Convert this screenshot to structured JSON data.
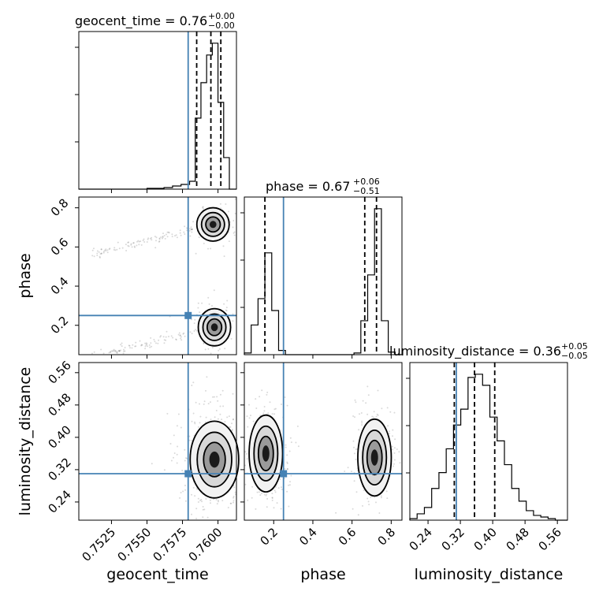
{
  "chart_data": {
    "type": "corner",
    "truths": {
      "geocent_time": 0.7579,
      "phase": 0.25,
      "luminosity_distance": 0.31
    },
    "titles": [
      {
        "param": "geocent_time",
        "main": "geocent_time = 0.76",
        "plus": "+0.00",
        "minus": "−0.00"
      },
      {
        "param": "phase",
        "main": "phase = 0.67",
        "plus": "+0.06",
        "minus": "−0.51"
      },
      {
        "param": "luminosity_distance",
        "main": "luminosity_distance = 0.36",
        "plus": "+0.05",
        "minus": "−0.05"
      }
    ],
    "axis_labels": {
      "x": [
        "geocent_time",
        "phase",
        "luminosity_distance"
      ],
      "y": [
        "phase",
        "luminosity_distance"
      ]
    },
    "ticks": {
      "geocent_time": {
        "values": [
          0.7525,
          0.755,
          0.7575,
          0.76
        ],
        "labels": [
          "0.7525",
          "0.7550",
          "0.7575",
          "0.7600"
        ]
      },
      "phase": {
        "values": [
          0.2,
          0.4,
          0.6,
          0.8
        ],
        "labels": [
          "0.2",
          "0.4",
          "0.6",
          "0.8"
        ]
      },
      "luminosity_distance": {
        "values": [
          0.24,
          0.32,
          0.4,
          0.48,
          0.56
        ],
        "labels": [
          "0.24",
          "0.32",
          "0.40",
          "0.48",
          "0.56"
        ]
      }
    },
    "ranges": {
      "geocent_time": [
        0.7502,
        0.7613
      ],
      "phase": [
        0.05,
        0.855
      ],
      "luminosity_distance": [
        0.195,
        0.585
      ]
    },
    "grid": true,
    "histograms": {
      "geocent_time": {
        "edges": [
          0.7502,
          0.7508,
          0.7514,
          0.752,
          0.7526,
          0.7532,
          0.7538,
          0.7544,
          0.755,
          0.7556,
          0.7562,
          0.7568,
          0.7574,
          0.758,
          0.7584,
          0.7588,
          0.7592,
          0.7596,
          0.76,
          0.7604,
          0.7608,
          0.7613
        ],
        "counts": [
          0,
          0,
          0,
          0,
          0,
          0,
          0,
          0,
          1,
          1,
          2,
          4,
          6,
          10,
          90,
          135,
          170,
          185,
          110,
          40,
          0
        ],
        "quantiles": [
          0.7585,
          0.7595,
          0.7602
        ]
      },
      "phase": {
        "edges": [
          0.05,
          0.085,
          0.12,
          0.155,
          0.19,
          0.225,
          0.26,
          0.295,
          0.33,
          0.365,
          0.4,
          0.435,
          0.47,
          0.505,
          0.54,
          0.575,
          0.61,
          0.645,
          0.68,
          0.715,
          0.75,
          0.785,
          0.82,
          0.855
        ],
        "counts": [
          2,
          35,
          66,
          120,
          52,
          5,
          0,
          0,
          0,
          0,
          0,
          0,
          0,
          0,
          0,
          0,
          2,
          40,
          94,
          172,
          40,
          3,
          0
        ],
        "quantiles": [
          0.155,
          0.665,
          0.725
        ]
      },
      "luminosity_distance": {
        "edges": [
          0.195,
          0.213,
          0.231,
          0.249,
          0.267,
          0.285,
          0.303,
          0.321,
          0.339,
          0.357,
          0.375,
          0.393,
          0.411,
          0.429,
          0.447,
          0.465,
          0.483,
          0.501,
          0.519,
          0.537,
          0.555,
          0.585
        ],
        "counts": [
          1,
          4,
          8,
          20,
          30,
          45,
          60,
          70,
          90,
          92,
          85,
          65,
          50,
          35,
          20,
          12,
          6,
          3,
          2,
          1,
          0
        ],
        "quantiles": [
          0.305,
          0.355,
          0.405
        ]
      }
    }
  }
}
